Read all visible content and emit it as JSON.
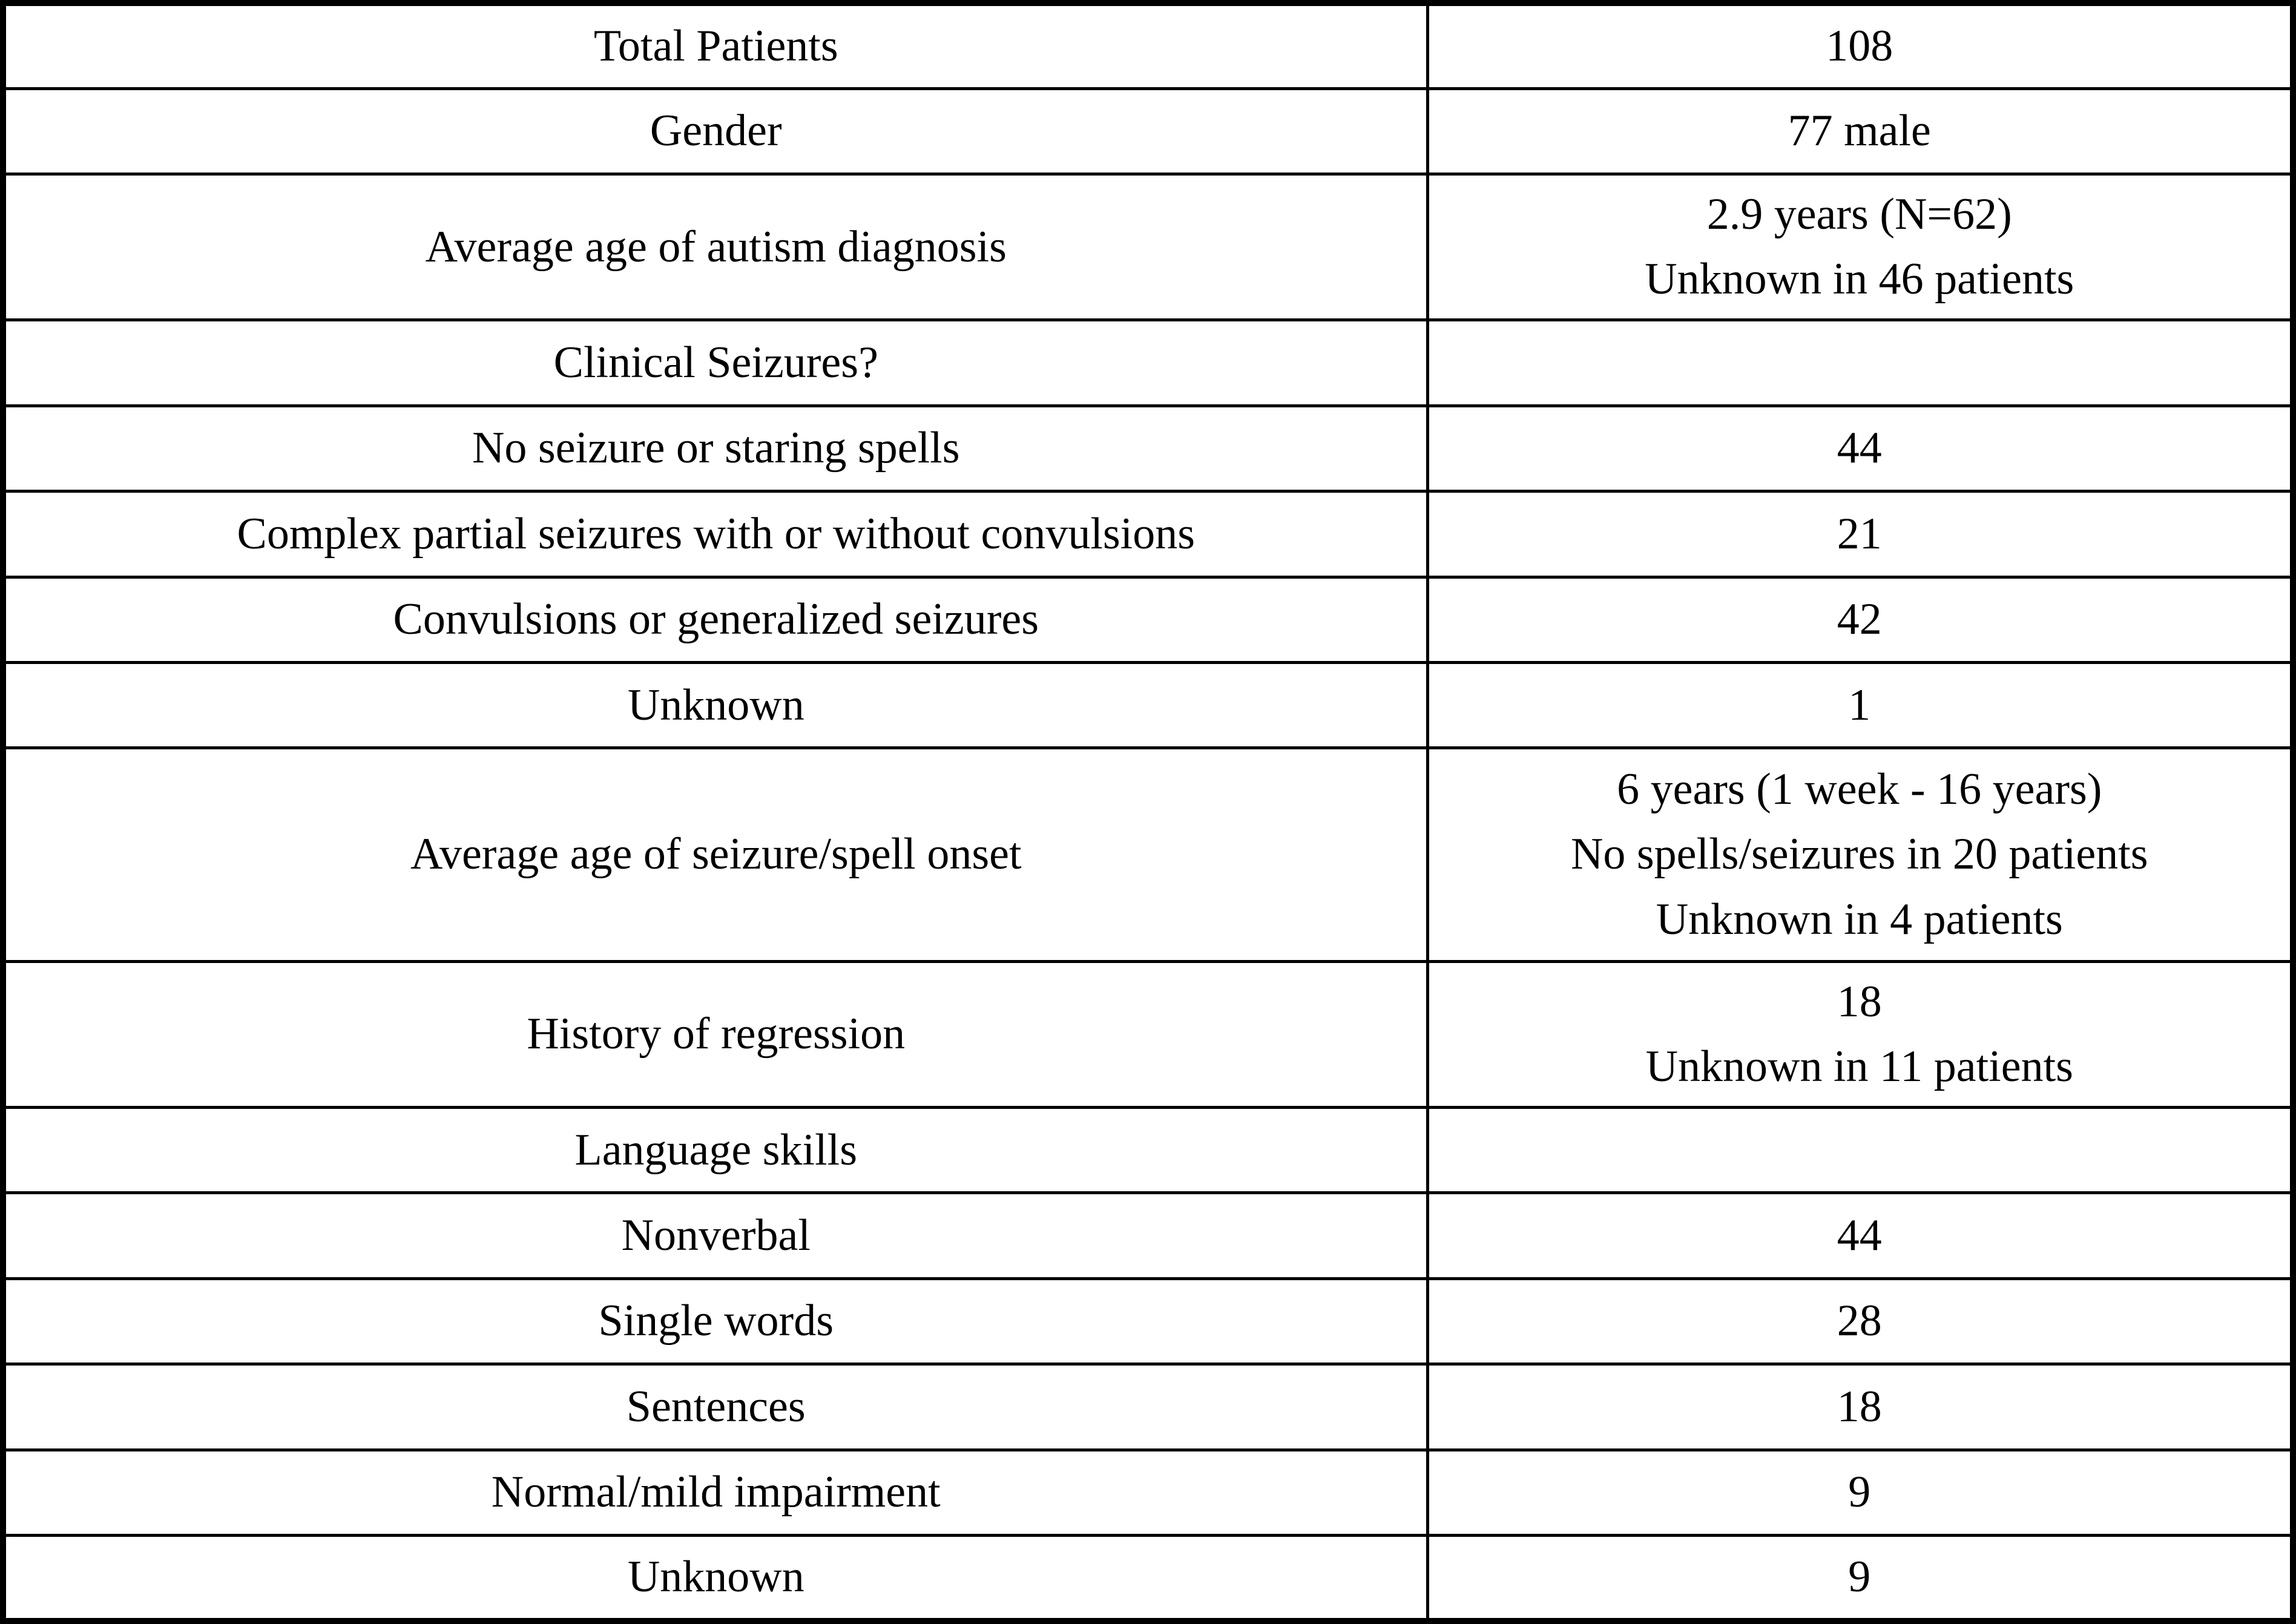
{
  "table": {
    "description": "Patient characteristics summary table",
    "columns": {
      "label_column": "characteristic",
      "value_column": "value"
    },
    "colors": {
      "border": "#000000",
      "background": "#ffffff",
      "text": "#000000"
    },
    "rows": [
      {
        "label": "Total Patients",
        "value": "108"
      },
      {
        "label": "Gender",
        "value": "77 male"
      },
      {
        "label": "Average age of autism diagnosis",
        "value": "2.9 years (N=62)\nUnknown in 46 patients"
      },
      {
        "label": "Clinical Seizures?",
        "value": ""
      },
      {
        "label": "No seizure or staring spells",
        "value": "44"
      },
      {
        "label": "Complex partial seizures with or without convulsions",
        "value": "21"
      },
      {
        "label": "Convulsions or generalized seizures",
        "value": "42"
      },
      {
        "label": "Unknown",
        "value": "1"
      },
      {
        "label": "Average age of seizure/spell onset",
        "value": "6 years (1 week - 16 years)\nNo spells/seizures in 20 patients\nUnknown in 4 patients"
      },
      {
        "label": "History of regression",
        "value": "18\nUnknown in 11 patients"
      },
      {
        "label": "Language skills",
        "value": ""
      },
      {
        "label": "Nonverbal",
        "value": "44"
      },
      {
        "label": "Single words",
        "value": "28"
      },
      {
        "label": "Sentences",
        "value": "18"
      },
      {
        "label": "Normal/mild impairment",
        "value": "9"
      },
      {
        "label": "Unknown",
        "value": "9"
      }
    ]
  }
}
